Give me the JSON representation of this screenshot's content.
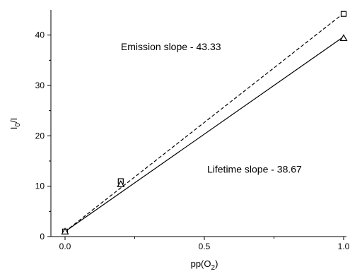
{
  "chart_data": {
    "type": "scatter",
    "xlabel": "pp(O2)",
    "ylabel": "I0/I",
    "xlim": [
      -0.04,
      1.0
    ],
    "ylim": [
      0,
      45
    ],
    "xticks": [
      0.0,
      0.5,
      1.0
    ],
    "xtick_labels": [
      "0.0",
      "0.5",
      "1.0"
    ],
    "yticks": [
      0,
      10,
      20,
      30,
      40
    ],
    "ytick_labels": [
      "0",
      "10",
      "20",
      "30",
      "40"
    ],
    "grid": false,
    "series": [
      {
        "marker": "square",
        "line_style": "dashed",
        "x": [
          0.0,
          0.2,
          1.0
        ],
        "y": [
          1.0,
          11.0,
          44.2
        ],
        "fit": {
          "slope": 43.33,
          "intercept": 1.0
        }
      },
      {
        "marker": "triangle",
        "line_style": "solid",
        "x": [
          0.0,
          0.2,
          1.0
        ],
        "y": [
          1.0,
          10.4,
          39.4
        ],
        "fit": {
          "slope": 38.67,
          "intercept": 1.0
        }
      }
    ],
    "annotations": [
      {
        "text": "Emission slope - 43.33",
        "anchor": [
          0.38,
          37.0
        ]
      },
      {
        "text": "Lifetime slope - 38.67",
        "anchor": [
          0.68,
          12.7
        ]
      }
    ]
  }
}
